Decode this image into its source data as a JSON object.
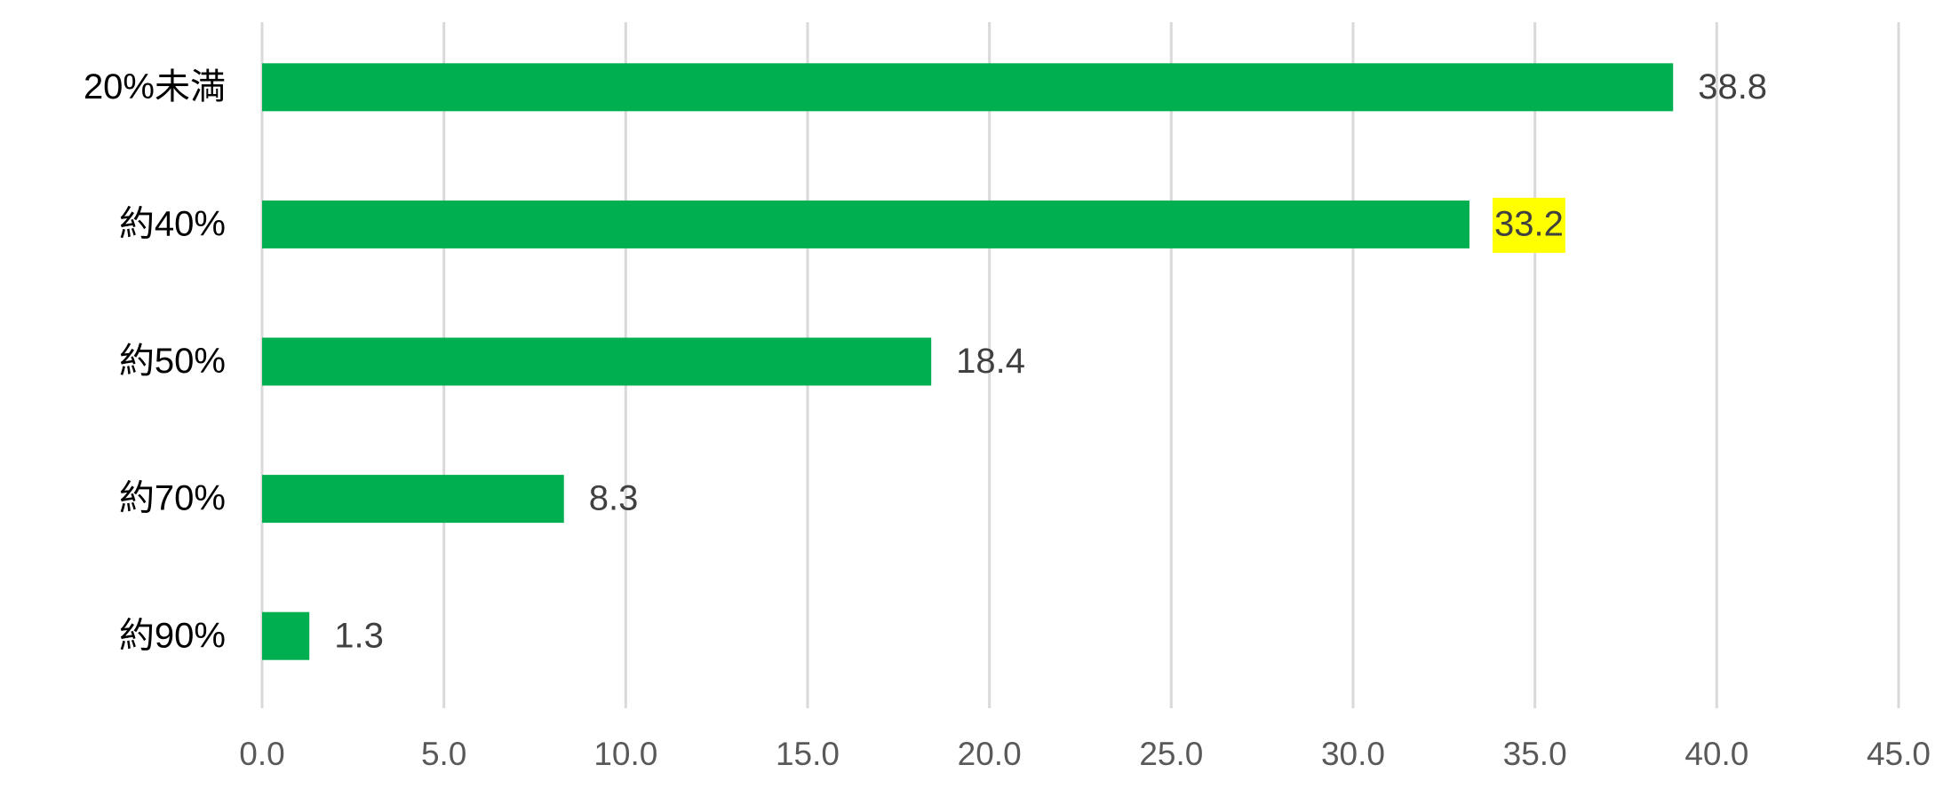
{
  "chart_data": {
    "type": "bar",
    "orientation": "horizontal",
    "categories": [
      "20%未満",
      "約40%",
      "約50%",
      "約70%",
      "約90%"
    ],
    "values": [
      38.8,
      33.2,
      18.4,
      8.3,
      1.3
    ],
    "color": "#00b050",
    "value_label_backgrounds": [
      null,
      "#ffff00",
      null,
      null,
      null
    ],
    "xlim": [
      0,
      45
    ],
    "xticks": [
      {
        "value": 0,
        "label": "0.0"
      },
      {
        "value": 5,
        "label": "5.0"
      },
      {
        "value": 10,
        "label": "10.0"
      },
      {
        "value": 15,
        "label": "15.0"
      },
      {
        "value": 20,
        "label": "20.0"
      },
      {
        "value": 25,
        "label": "25.0"
      },
      {
        "value": 30,
        "label": "30.0"
      },
      {
        "value": 35,
        "label": "35.0"
      },
      {
        "value": 40,
        "label": "40.0"
      },
      {
        "value": 45,
        "label": "45.0"
      }
    ],
    "grid": true
  }
}
